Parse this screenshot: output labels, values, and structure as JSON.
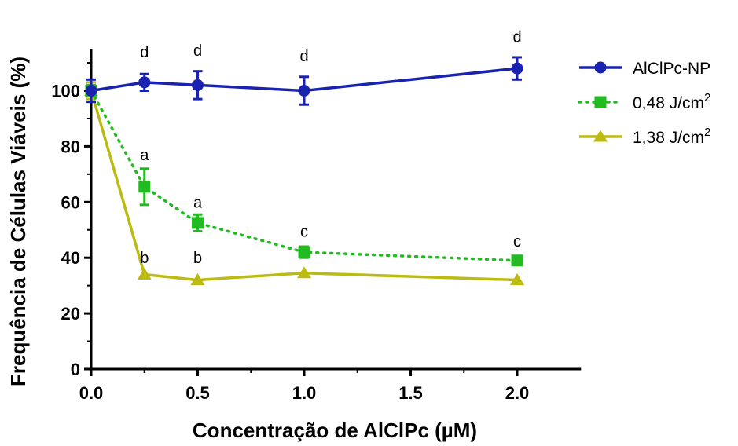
{
  "chart_data": {
    "type": "line",
    "title": "",
    "xlabel": "Concentração de AlClPc (µM)",
    "ylabel": "Frequência de Células Viáveis (%)",
    "xlim": [
      0,
      2.3
    ],
    "ylim": [
      0,
      115
    ],
    "x_ticks": [
      "0.0",
      "0.5",
      "1.0",
      "1.5",
      "2.0"
    ],
    "x_tick_values": [
      0,
      0.5,
      1.0,
      1.5,
      2.0
    ],
    "y_ticks": [
      "0",
      "20",
      "40",
      "60",
      "80",
      "100"
    ],
    "y_tick_values": [
      0,
      20,
      40,
      60,
      80,
      100
    ],
    "grid": false,
    "legend_position": "top-right",
    "series": [
      {
        "name": "AlClPc-NP",
        "color": "#1a22b0",
        "marker": "circle",
        "line_style": "solid",
        "x": [
          0,
          0.25,
          0.5,
          1.0,
          2.0
        ],
        "y": [
          100,
          103,
          102,
          100,
          108
        ],
        "error": [
          4,
          3,
          5,
          5,
          4
        ]
      },
      {
        "name": "0,48 J/cm",
        "name_sup": "2",
        "color": "#22bb22",
        "marker": "square",
        "line_style": "dotted",
        "x": [
          0,
          0.25,
          0.5,
          1.0,
          2.0
        ],
        "y": [
          100,
          65.5,
          52.5,
          42,
          39
        ],
        "error": [
          2,
          6.5,
          3,
          2,
          1
        ]
      },
      {
        "name": "1,38 J/cm",
        "name_sup": "2",
        "color": "#bbbb11",
        "marker": "triangle",
        "line_style": "solid",
        "x": [
          0,
          0.25,
          0.5,
          1.0,
          2.0
        ],
        "y": [
          100,
          34,
          32,
          34.5,
          32
        ],
        "error": [
          3,
          0,
          0,
          0,
          0
        ]
      }
    ],
    "annotations": [
      {
        "text": "d",
        "x": 0.25,
        "y": 114
      },
      {
        "text": "d",
        "x": 0.5,
        "y": 114.5
      },
      {
        "text": "d",
        "x": 1.0,
        "y": 112.5
      },
      {
        "text": "d",
        "x": 2.0,
        "y": 119.5
      },
      {
        "text": "a",
        "x": 0.25,
        "y": 77
      },
      {
        "text": "a",
        "x": 0.5,
        "y": 60
      },
      {
        "text": "c",
        "x": 1.0,
        "y": 49.5
      },
      {
        "text": "c",
        "x": 2.0,
        "y": 46
      },
      {
        "text": "b",
        "x": 0.25,
        "y": 40
      },
      {
        "text": "b",
        "x": 0.5,
        "y": 40
      }
    ]
  }
}
